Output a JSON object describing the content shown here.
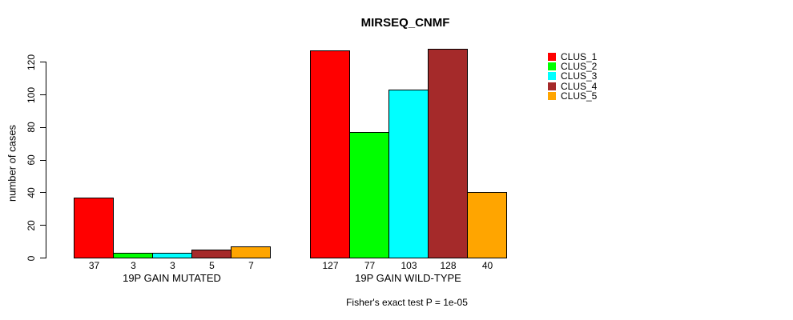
{
  "chart_data": {
    "type": "bar",
    "title": "MIRSEQ_CNMF",
    "ylabel": "number of cases",
    "xlabel": "",
    "ylim": [
      0,
      130
    ],
    "yticks": [
      0,
      20,
      40,
      60,
      80,
      100,
      120
    ],
    "grid": false,
    "legend_position": "right",
    "categories": [
      "19P GAIN MUTATED",
      "19P GAIN WILD-TYPE"
    ],
    "series": [
      {
        "name": "CLUS_1",
        "color": "#ff0000",
        "values": [
          37,
          127
        ]
      },
      {
        "name": "CLUS_2",
        "color": "#00ff00",
        "values": [
          3,
          77
        ]
      },
      {
        "name": "CLUS_3",
        "color": "#00ffff",
        "values": [
          3,
          103
        ]
      },
      {
        "name": "CLUS_4",
        "color": "#a52a2a",
        "values": [
          5,
          128
        ]
      },
      {
        "name": "CLUS_5",
        "color": "#ffa500",
        "values": [
          7,
          40
        ]
      }
    ],
    "groups": [
      {
        "label": "19P GAIN MUTATED",
        "values": [
          37,
          3,
          3,
          5,
          7
        ]
      },
      {
        "label": "19P GAIN WILD-TYPE",
        "values": [
          127,
          77,
          103,
          128,
          40
        ]
      }
    ],
    "bar_value_labels": [
      [
        37,
        3,
        3,
        5,
        7
      ],
      [
        127,
        77,
        103,
        128,
        40
      ]
    ],
    "footnote": "Fisher's exact test P = 1e-05"
  }
}
